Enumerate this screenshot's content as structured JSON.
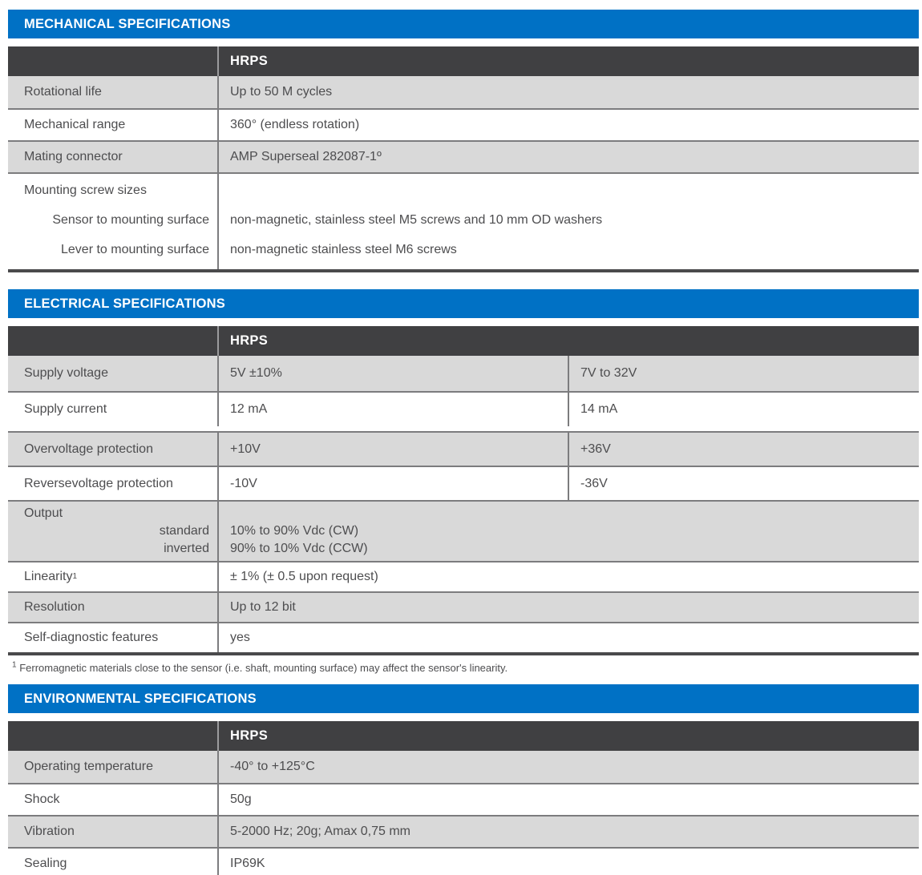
{
  "colors": {
    "accent_blue": "#0071c5",
    "header_dark": "#404042",
    "row_gray": "#d9d9d9",
    "text": "#4d4d4f"
  },
  "mechanical": {
    "title": "MECHANICAL SPECIFICATIONS",
    "col_header": "HRPS",
    "rows": [
      {
        "label": "Rotational life",
        "value": "Up to 50 M cycles"
      },
      {
        "label": "Mechanical range",
        "value": "360° (endless rotation)"
      },
      {
        "label": "Mating connector",
        "value": "AMP Superseal 282087-1º"
      }
    ],
    "mounting_group": {
      "label": "Mounting screw sizes",
      "sub_rows": [
        {
          "label": "Sensor to mounting surface",
          "value": "non-magnetic, stainless steel M5 screws and 10 mm OD washers"
        },
        {
          "label": "Lever to mounting surface",
          "value": "non-magnetic stainless steel M6 screws"
        }
      ]
    }
  },
  "electrical": {
    "title": "ELECTRICAL SPECIFICATIONS",
    "col_header": "HRPS",
    "dual_rows": [
      {
        "label": "Supply voltage",
        "value1": "5V ±10%",
        "value2": "7V to 32V"
      },
      {
        "label": "Supply current",
        "value1": "12 mA",
        "value2": "14 mA"
      },
      {
        "label": "Overvoltage protection",
        "value1": "+10V",
        "value2": "+36V"
      },
      {
        "label": "Reversevoltage protection",
        "value1": "-10V",
        "value2": "-36V"
      }
    ],
    "output_group": {
      "label": "Output",
      "sub_rows": [
        {
          "label": "standard",
          "value": "10% to 90% Vdc (CW)"
        },
        {
          "label": "inverted",
          "value": "90% to 10% Vdc (CCW)"
        }
      ]
    },
    "rows": [
      {
        "label": "Linearity",
        "label_sup": "1",
        "value": "± 1% (± 0.5 upon request)"
      },
      {
        "label": "Resolution",
        "label_sup": "",
        "value": "Up to 12 bit"
      },
      {
        "label": "Self-diagnostic features",
        "label_sup": "",
        "value": "yes"
      }
    ],
    "footnote_sup": "1",
    "footnote": "Ferromagnetic materials close to the sensor (i.e. shaft, mounting surface) may affect the sensor's linearity."
  },
  "environmental": {
    "title": "ENVIRONMENTAL SPECIFICATIONS",
    "col_header": "HRPS",
    "rows": [
      {
        "label": "Operating temperature",
        "value": "-40° to +125°C"
      },
      {
        "label": "Shock",
        "value": "50g"
      },
      {
        "label": "Vibration",
        "value": "5-2000 Hz; 20g; Amax 0,75 mm"
      },
      {
        "label": "Sealing",
        "value": "IP69K"
      }
    ]
  }
}
